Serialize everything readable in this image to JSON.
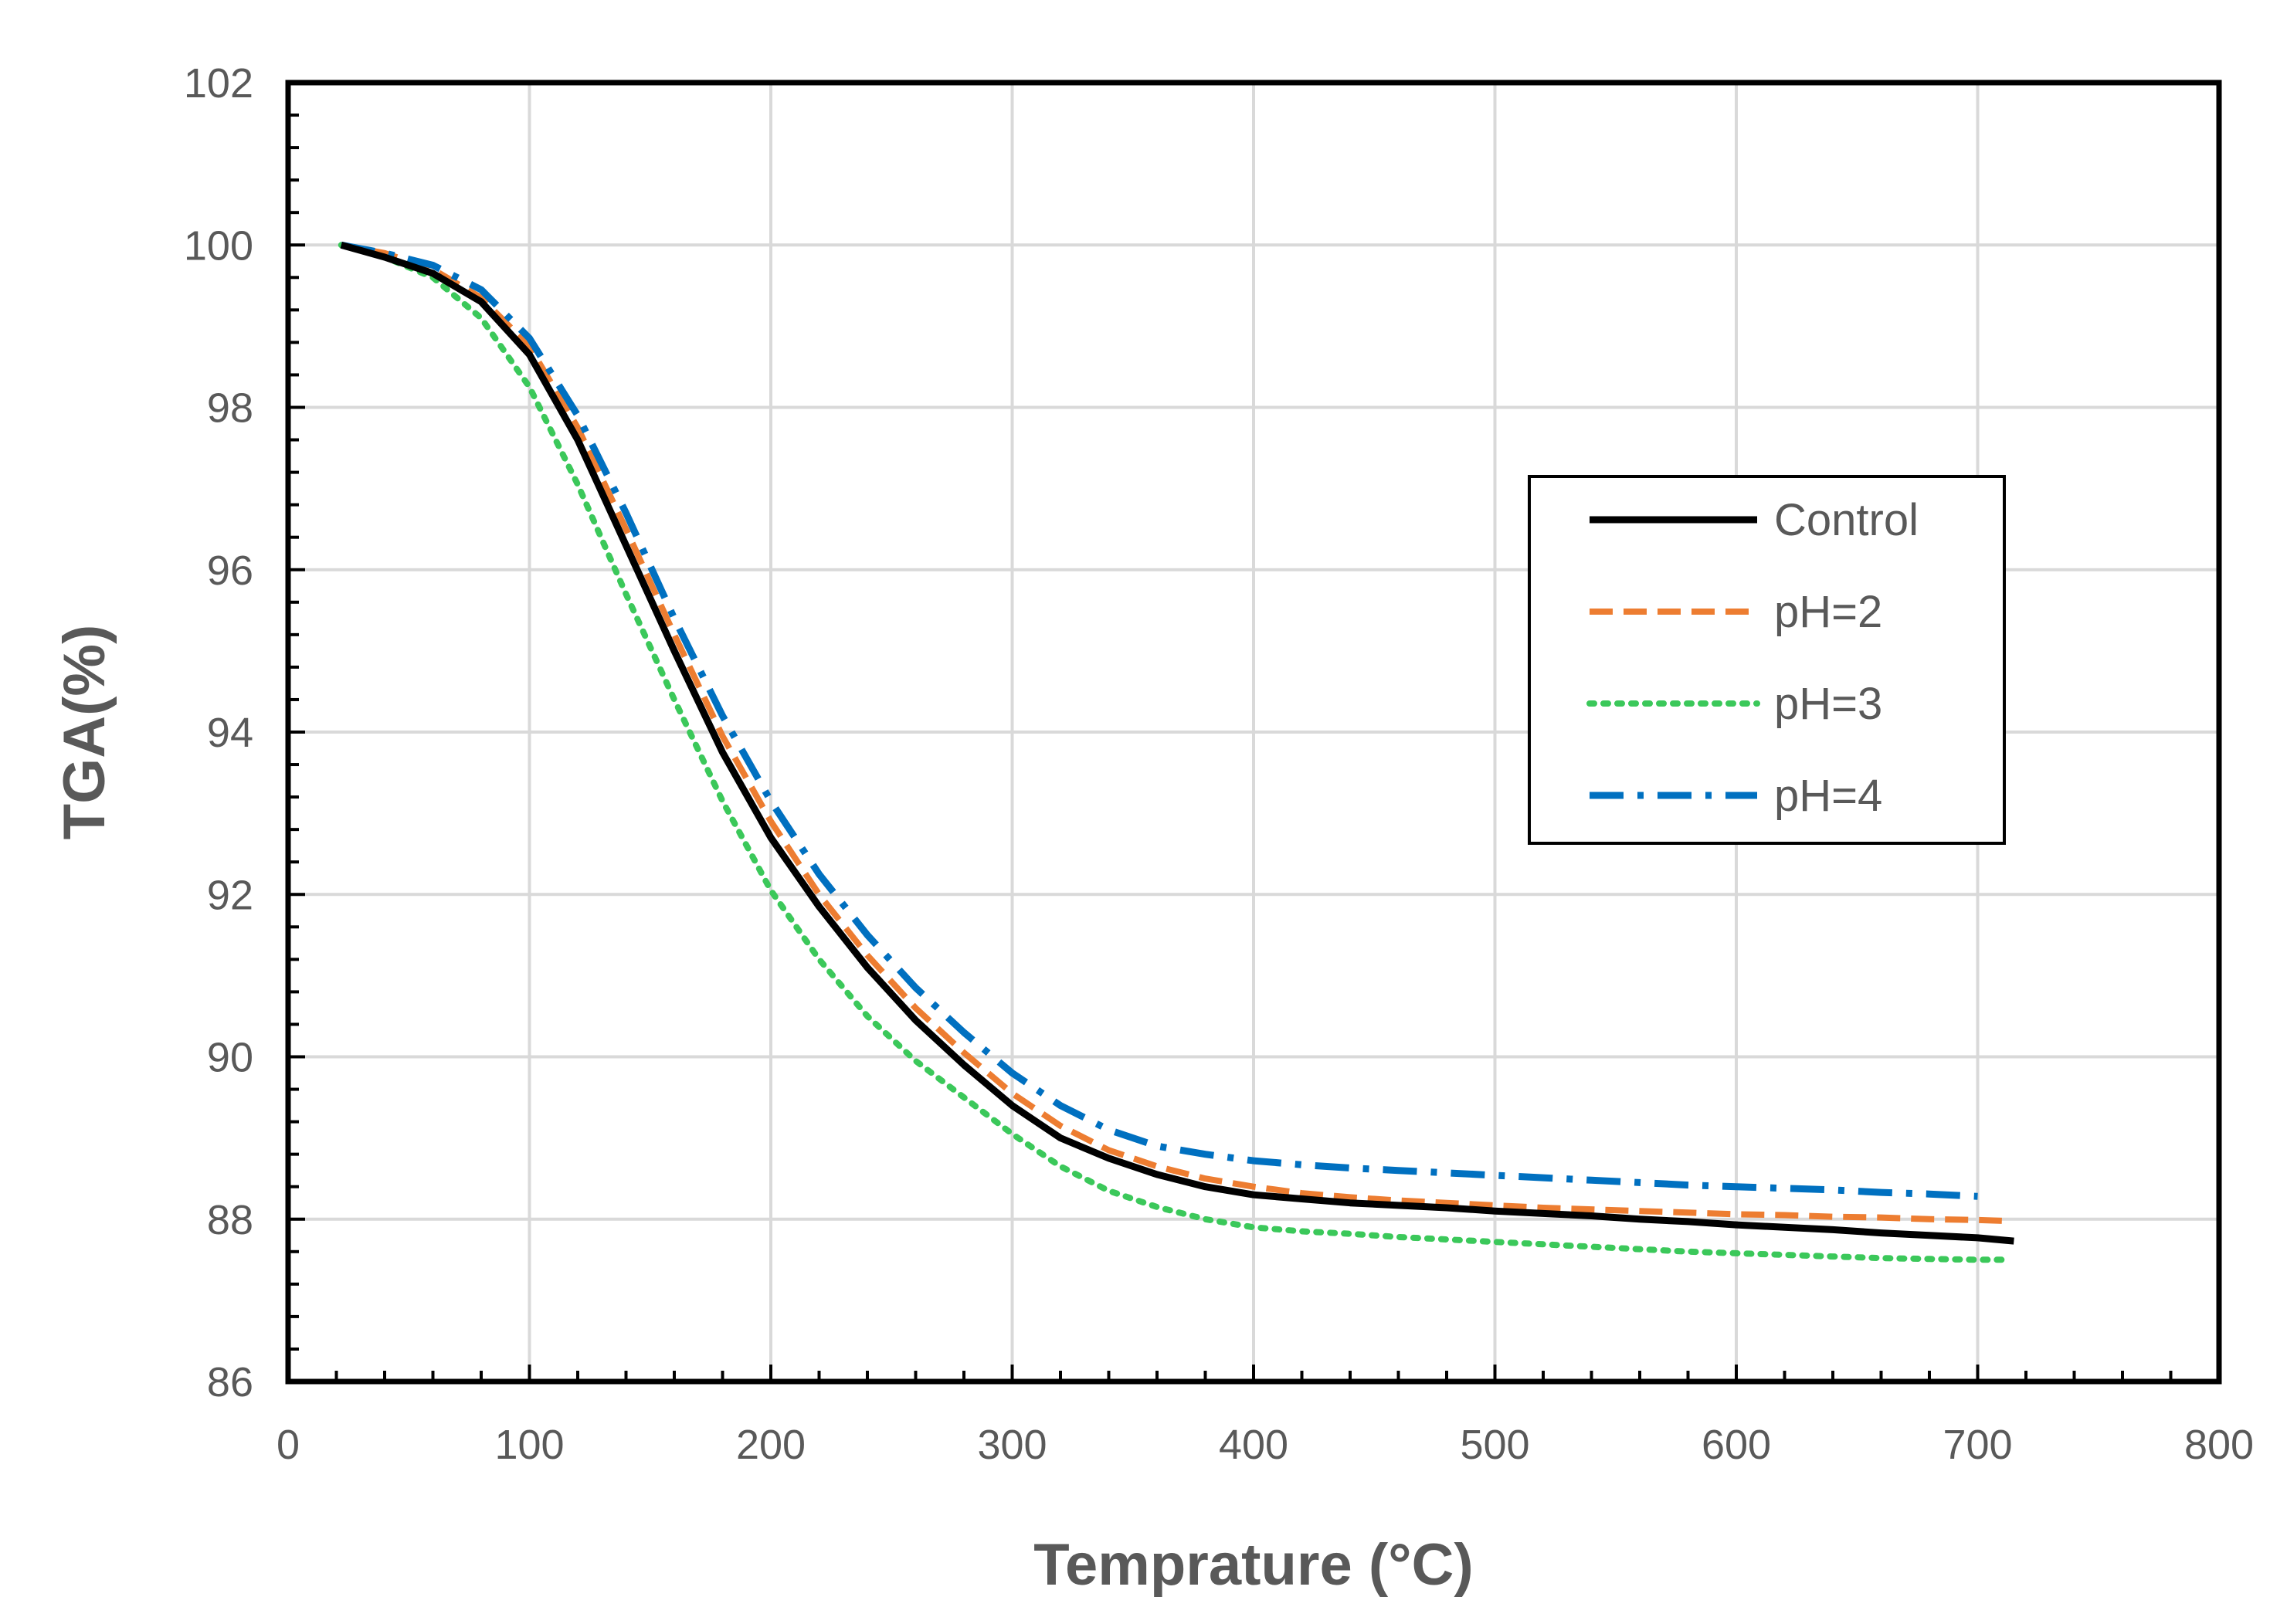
{
  "chart_data": {
    "type": "line",
    "title": "",
    "xlabel": "Temprature (°C)",
    "ylabel": "TGA(%)",
    "xlim": [
      0,
      800
    ],
    "ylim": [
      86,
      102
    ],
    "x_ticks": [
      0,
      100,
      200,
      300,
      400,
      500,
      600,
      700,
      800
    ],
    "y_ticks": [
      86,
      88,
      90,
      92,
      94,
      96,
      98,
      100,
      102
    ],
    "grid": true,
    "legend_position": "top-right",
    "series": [
      {
        "name": "Control",
        "color": "#000000",
        "style": "solid",
        "x": [
          22,
          40,
          60,
          80,
          100,
          120,
          140,
          160,
          180,
          200,
          220,
          240,
          260,
          280,
          300,
          320,
          340,
          360,
          380,
          400,
          420,
          440,
          460,
          480,
          500,
          520,
          540,
          560,
          580,
          600,
          620,
          640,
          660,
          680,
          700,
          715
        ],
        "y": [
          100.0,
          99.85,
          99.65,
          99.3,
          98.65,
          97.6,
          96.3,
          95.0,
          93.75,
          92.7,
          91.85,
          91.1,
          90.45,
          89.9,
          89.4,
          89.0,
          88.75,
          88.55,
          88.4,
          88.3,
          88.25,
          88.2,
          88.17,
          88.14,
          88.1,
          88.07,
          88.04,
          88.0,
          87.97,
          87.93,
          87.9,
          87.87,
          87.83,
          87.8,
          87.77,
          87.73
        ]
      },
      {
        "name": "pH=2",
        "color": "#ED7D31",
        "style": "dashed",
        "x": [
          22,
          40,
          60,
          80,
          100,
          120,
          140,
          160,
          180,
          200,
          220,
          240,
          260,
          280,
          300,
          320,
          340,
          360,
          380,
          400,
          420,
          440,
          460,
          480,
          500,
          520,
          540,
          560,
          580,
          600,
          620,
          640,
          660,
          680,
          700,
          710
        ],
        "y": [
          100.0,
          99.9,
          99.7,
          99.35,
          98.75,
          97.75,
          96.5,
          95.2,
          93.95,
          92.9,
          92.0,
          91.25,
          90.6,
          90.05,
          89.55,
          89.15,
          88.85,
          88.65,
          88.5,
          88.4,
          88.32,
          88.27,
          88.23,
          88.2,
          88.17,
          88.14,
          88.12,
          88.1,
          88.08,
          88.06,
          88.05,
          88.03,
          88.02,
          88.0,
          87.99,
          87.98
        ]
      },
      {
        "name": "pH=3",
        "color": "#3BC85A",
        "style": "dotted",
        "x": [
          22,
          40,
          60,
          80,
          100,
          120,
          140,
          160,
          180,
          200,
          220,
          240,
          260,
          280,
          300,
          320,
          340,
          360,
          380,
          400,
          420,
          440,
          460,
          480,
          500,
          520,
          540,
          560,
          580,
          600,
          620,
          640,
          660,
          680,
          700,
          710
        ],
        "y": [
          100.0,
          99.85,
          99.6,
          99.1,
          98.25,
          97.05,
          95.7,
          94.4,
          93.15,
          92.05,
          91.2,
          90.5,
          89.95,
          89.5,
          89.05,
          88.65,
          88.35,
          88.15,
          88.0,
          87.9,
          87.85,
          87.82,
          87.78,
          87.75,
          87.72,
          87.69,
          87.66,
          87.63,
          87.6,
          87.58,
          87.56,
          87.54,
          87.52,
          87.51,
          87.5,
          87.5
        ]
      },
      {
        "name": "pH=4",
        "color": "#0070C0",
        "style": "dashdot",
        "x": [
          22,
          40,
          60,
          80,
          100,
          120,
          140,
          160,
          180,
          200,
          220,
          240,
          260,
          280,
          300,
          320,
          340,
          360,
          380,
          400,
          420,
          440,
          460,
          480,
          500,
          520,
          540,
          560,
          580,
          600,
          620,
          640,
          660,
          680,
          700
        ],
        "y": [
          100.0,
          99.9,
          99.75,
          99.45,
          98.85,
          97.9,
          96.7,
          95.4,
          94.2,
          93.15,
          92.25,
          91.5,
          90.85,
          90.3,
          89.8,
          89.4,
          89.1,
          88.9,
          88.8,
          88.72,
          88.67,
          88.63,
          88.6,
          88.57,
          88.54,
          88.51,
          88.48,
          88.45,
          88.42,
          88.4,
          88.38,
          88.36,
          88.33,
          88.31,
          88.28
        ]
      }
    ]
  }
}
